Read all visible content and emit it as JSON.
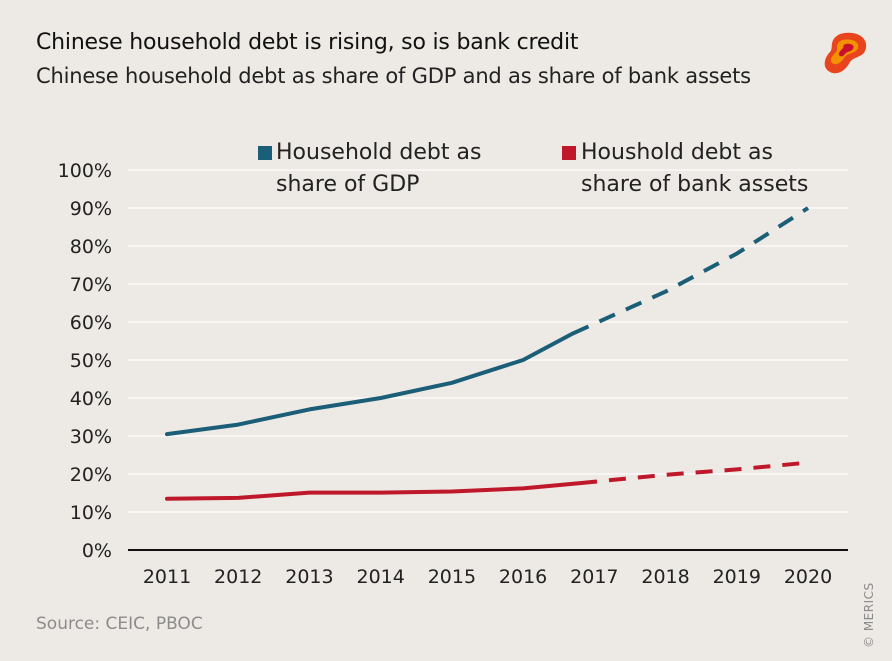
{
  "header": {
    "title": "Chinese household debt is rising, so is bank credit",
    "subtitle": "Chinese household debt as share of GDP and as share of bank assets"
  },
  "footer": {
    "source": "Source: CEIC, PBOC",
    "copyright": "© MERICS"
  },
  "logo": {
    "icon": "merics-logo-icon",
    "colors": [
      "#c8102e",
      "#f39200"
    ]
  },
  "legend": {
    "items": [
      {
        "label_line1": "Household debt as",
        "label_line2": "share of GDP",
        "color": "#1b5e78"
      },
      {
        "label_line1": "Houshold debt as",
        "label_line2": "share of bank assets",
        "color": "#c0182b"
      }
    ]
  },
  "chart_data": {
    "type": "line",
    "title": "Chinese household debt is rising, so is bank credit",
    "subtitle": "Chinese household debt as share of GDP and as share of bank assets",
    "categories": [
      "2011",
      "2012",
      "2013",
      "2014",
      "2015",
      "2016",
      "2017",
      "2018",
      "2019",
      "2020"
    ],
    "x_numeric": [
      2011,
      2012,
      2013,
      2014,
      2015,
      2016,
      2017,
      2018,
      2019,
      2020
    ],
    "ylim": [
      0,
      100
    ],
    "yticks": [
      0,
      10,
      20,
      30,
      40,
      50,
      60,
      70,
      80,
      90,
      100
    ],
    "ytick_labels": [
      "0%",
      "10%",
      "20%",
      "30%",
      "40%",
      "50%",
      "60%",
      "70%",
      "80%",
      "90%",
      "100%"
    ],
    "grid": true,
    "legend_position": "top",
    "series": [
      {
        "name": "Household debt as share of GDP",
        "color": "#1b5e78",
        "actual": {
          "x": [
            2011,
            2012,
            2013,
            2014,
            2015,
            2016,
            2016.7
          ],
          "y": [
            30.5,
            33,
            37,
            40,
            44,
            50,
            57
          ]
        },
        "projected": {
          "x": [
            2016.7,
            2018,
            2019,
            2020
          ],
          "y": [
            57,
            68,
            78,
            90
          ]
        }
      },
      {
        "name": "Houshold debt as share of bank assets",
        "color": "#c0182b",
        "actual": {
          "x": [
            2011,
            2012,
            2013,
            2014,
            2015,
            2016,
            2016.8
          ],
          "y": [
            13.5,
            13.7,
            15.1,
            15.1,
            15.4,
            16.2,
            17.6
          ]
        },
        "projected": {
          "x": [
            2016.8,
            2018,
            2019,
            2020
          ],
          "y": [
            17.6,
            19.8,
            21.2,
            23
          ]
        }
      }
    ]
  }
}
